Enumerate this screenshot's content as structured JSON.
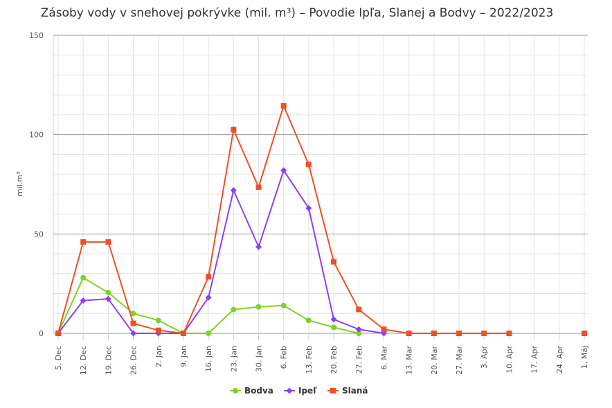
{
  "chart_data": {
    "type": "line",
    "title": "Zásoby vody v snehovej pokrývke (mil. m³) – Povodie Ipľa, Slanej a Bodvy – 2022/2023",
    "ylabel": "mil.m³",
    "xlabel": "",
    "ylim": [
      0,
      150
    ],
    "yticks": [
      0,
      50,
      100,
      150
    ],
    "grid": true,
    "legend": "bottom-center",
    "categories": [
      "5. Dec",
      "12. Dec",
      "19. Dec",
      "26. Dec",
      "2. Jan",
      "9. Jan",
      "16. Jan",
      "23. Jan",
      "30. Jan",
      "6. Feb",
      "13. Feb",
      "20. Feb",
      "27. Feb",
      "6. Mar",
      "13. Mar",
      "20. Mar",
      "27. Mar",
      "3. Apr",
      "10. Apr",
      "17. Apr",
      "24. Apr",
      "1. Máj"
    ],
    "series": [
      {
        "name": "Bodva",
        "color": "#7ed321",
        "marker": "circle",
        "values": [
          0,
          28,
          20.5,
          10,
          6.5,
          0,
          0,
          12,
          13.3,
          14,
          6.5,
          3,
          0,
          null,
          null,
          null,
          null,
          null,
          null,
          null,
          null,
          null
        ]
      },
      {
        "name": "Ipeľ",
        "color": "#8a3ffc",
        "marker": "diamond",
        "values": [
          0,
          16.5,
          17.3,
          0,
          0,
          0,
          18,
          72,
          43.5,
          82,
          63,
          7,
          2,
          0,
          null,
          null,
          null,
          null,
          null,
          null,
          null,
          null
        ]
      },
      {
        "name": "Slaná",
        "color": "#f04e23",
        "marker": "square",
        "values": [
          0,
          46,
          46,
          5,
          1.5,
          0,
          28.5,
          102.5,
          73.5,
          114.5,
          85,
          36,
          12,
          2,
          0,
          0,
          0,
          0,
          0,
          null,
          null,
          0
        ]
      }
    ]
  }
}
